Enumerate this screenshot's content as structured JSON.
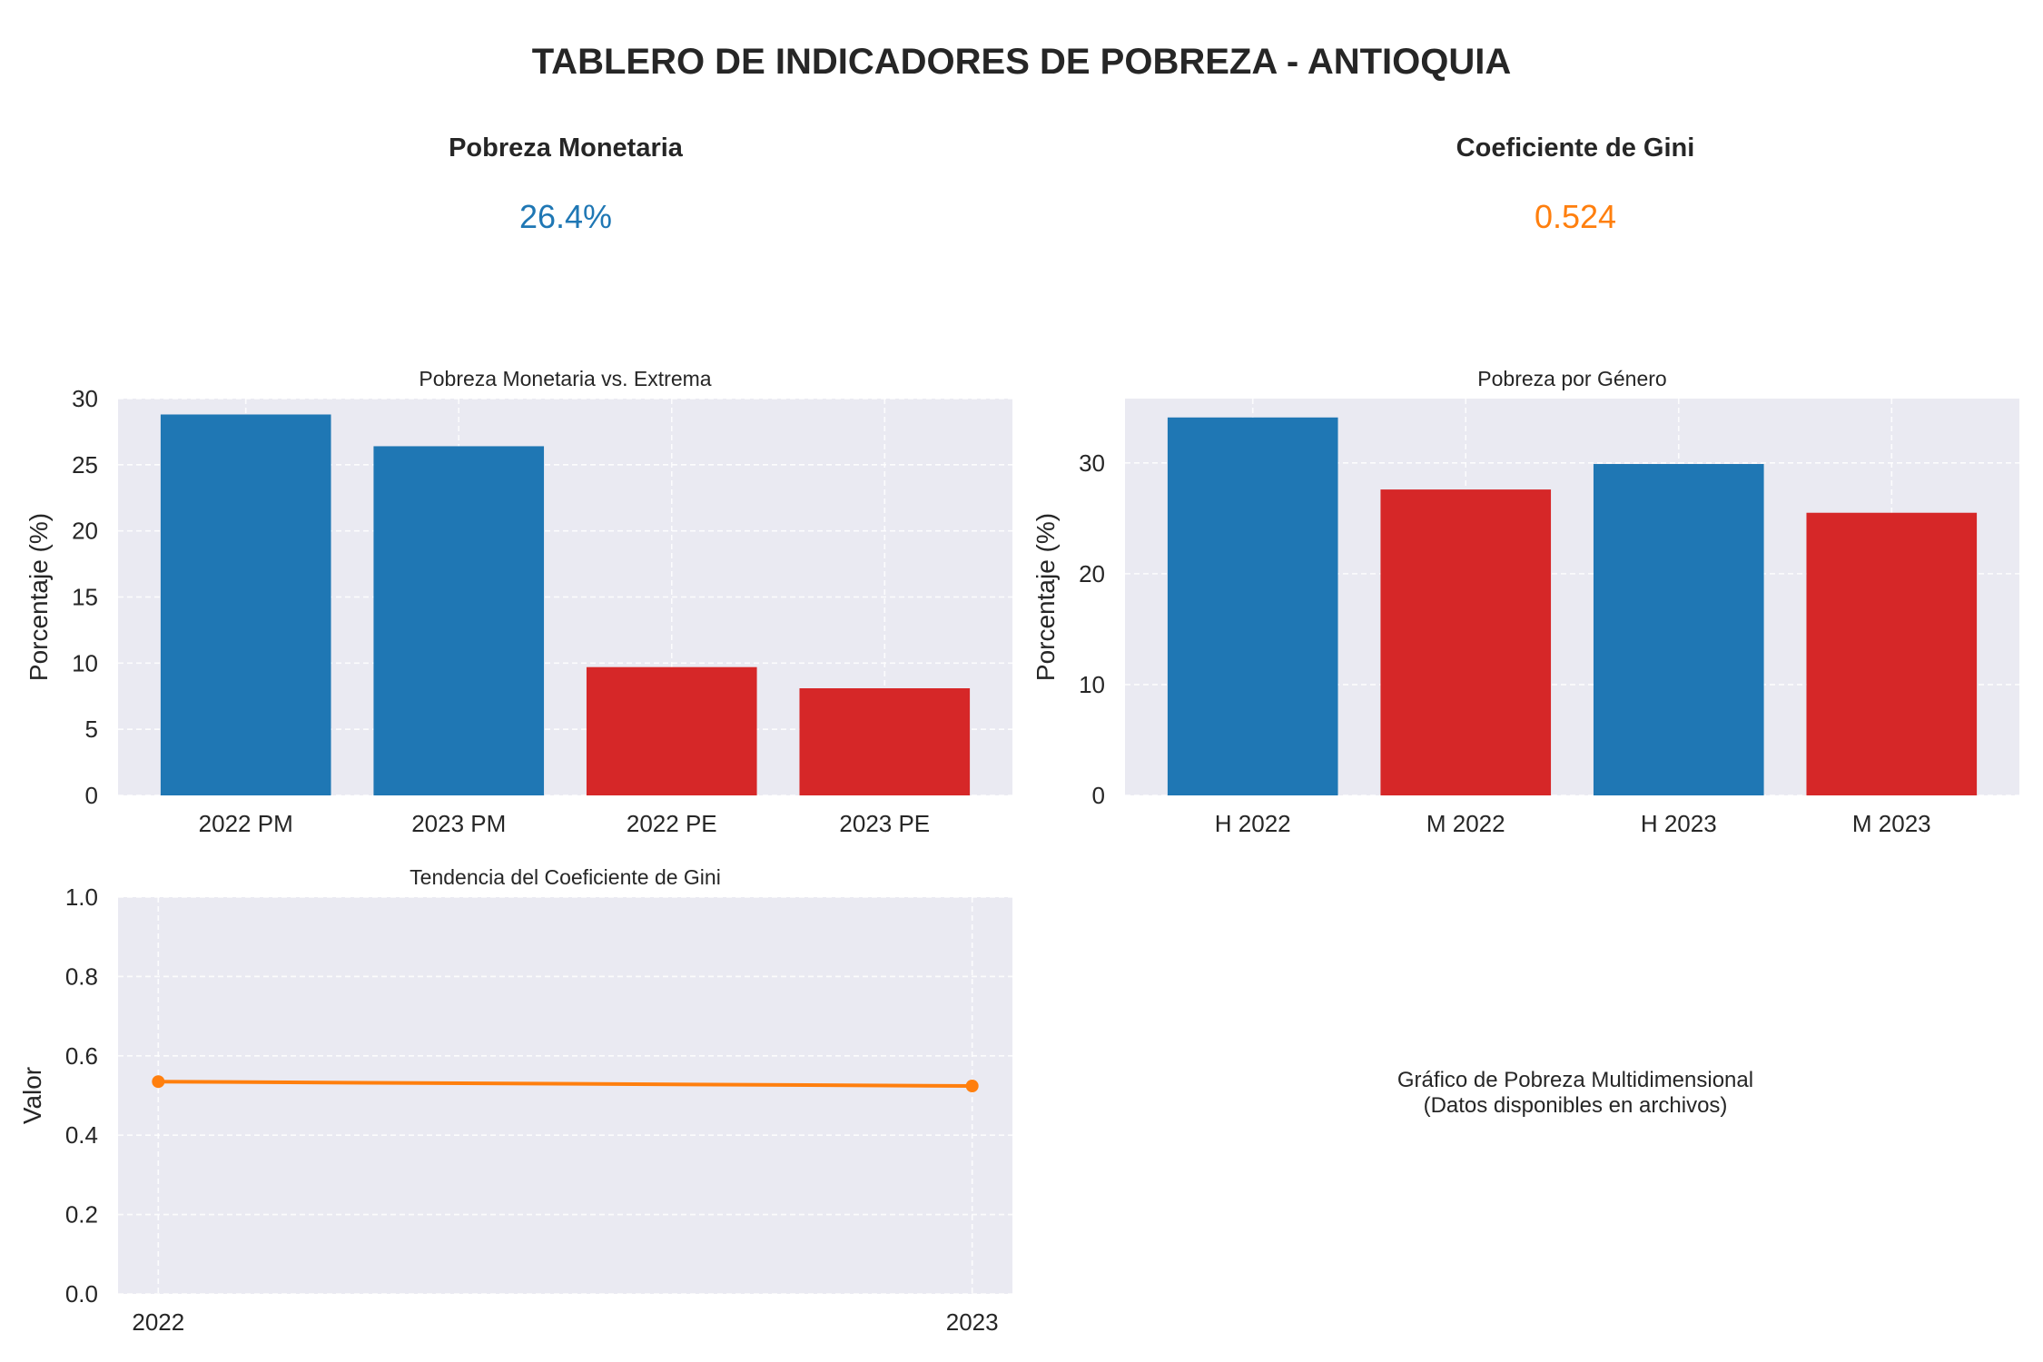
{
  "page": {
    "title": "TABLERO DE INDICADORES DE POBREZA - ANTIOQUIA"
  },
  "kpis": [
    {
      "label": "Pobreza Monetaria",
      "value": "26.4%",
      "color": "#1f77b4"
    },
    {
      "label": "Coeficiente de Gini",
      "value": "0.524",
      "color": "#ff7f0e"
    }
  ],
  "colors": {
    "blue": "#1f77b4",
    "red": "#d62728",
    "orange": "#ff7f0e",
    "plot_bg": "#eaeaf2",
    "grid": "#ffffff"
  },
  "placeholder": {
    "line1": "Gráfico de Pobreza Multidimensional",
    "line2": "(Datos disponibles en archivos)"
  },
  "chart_data": [
    {
      "type": "bar",
      "title": "Pobreza Monetaria vs. Extrema",
      "xlabel": "",
      "ylabel": "Porcentaje (%)",
      "categories": [
        "2022 PM",
        "2023 PM",
        "2022 PE",
        "2023 PE"
      ],
      "values": [
        28.8,
        26.4,
        9.7,
        8.1
      ],
      "bar_colors": [
        "#1f77b4",
        "#1f77b4",
        "#d62728",
        "#d62728"
      ],
      "ylim": [
        0,
        30
      ],
      "yticks": [
        0,
        5,
        10,
        15,
        20,
        25,
        30
      ],
      "grid": true
    },
    {
      "type": "bar",
      "title": "Pobreza por Género",
      "xlabel": "",
      "ylabel": "Porcentaje (%)",
      "categories": [
        "H 2022",
        "M 2022",
        "H 2023",
        "M 2023"
      ],
      "values": [
        34.1,
        27.6,
        29.9,
        25.5
      ],
      "bar_colors": [
        "#1f77b4",
        "#d62728",
        "#1f77b4",
        "#d62728"
      ],
      "ylim": [
        0,
        35.8
      ],
      "yticks": [
        0,
        10,
        20,
        30
      ],
      "grid": true
    },
    {
      "type": "line",
      "title": "Tendencia del Coeficiente de Gini",
      "xlabel": "",
      "ylabel": "Valor",
      "x": [
        "2022",
        "2023"
      ],
      "values": [
        0.535,
        0.524
      ],
      "color": "#ff7f0e",
      "ylim": [
        0,
        1
      ],
      "yticks": [
        "0.0",
        "0.2",
        "0.4",
        "0.6",
        "0.8",
        "1.0"
      ],
      "grid": true
    }
  ]
}
